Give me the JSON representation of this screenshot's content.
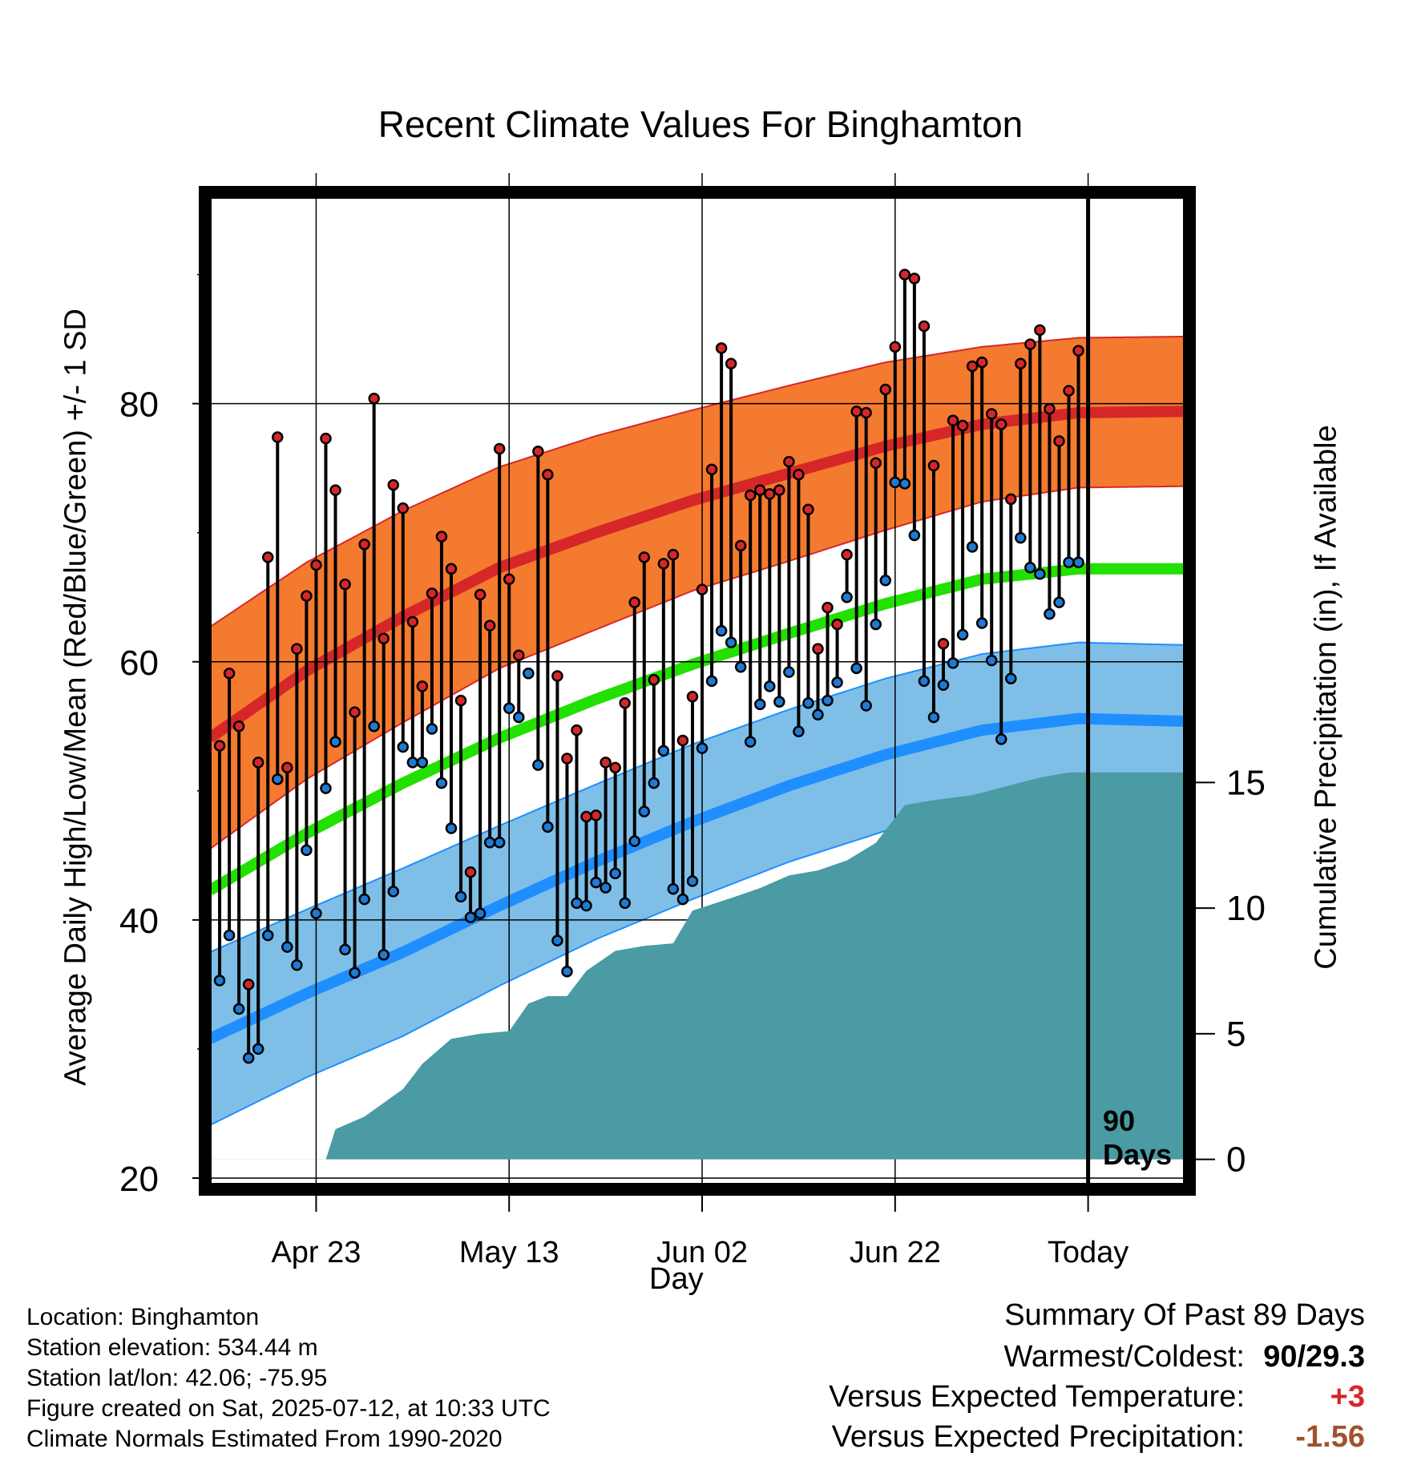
{
  "page": {
    "title": "Recent Climate Values For Binghamton",
    "ylabel_left": "Average Daily High/Low/Mean (Red/Blue/Green) +/- 1 SD",
    "ylabel_right": "Cumulative Precipitation (in), If Available",
    "xlabel": "Day",
    "today_marker_line1": "90",
    "today_marker_line2": "Days"
  },
  "info": {
    "location": "Location: Binghamton",
    "elevation": "Station elevation: 534.44 m",
    "latlon": "Station lat/lon: 42.06; -75.95",
    "created": "Figure created on Sat, 2025-07-12, at 10:33 UTC",
    "normals": "Climate Normals Estimated From 1990-2020"
  },
  "summary": {
    "heading": "Summary Of Past 89 Days",
    "warm_cold_label": "Warmest/Coldest:",
    "warm_cold_value": "90/29.3",
    "temp_label": "Versus Expected Temperature:",
    "temp_value": "+3",
    "precip_label": "Versus Expected Precipitation:",
    "precip_value": "-1.56",
    "temp_color": "#d62728",
    "precip_color": "#a0522d"
  },
  "chart_data": {
    "type": "line",
    "title": "Recent Climate Values For Binghamton",
    "xlabel": "Day",
    "ylabel": "Average Daily High/Low/Mean (Red/Blue/Green) +/- 1 SD",
    "y2label": "Cumulative Precipitation (in), If Available",
    "xlim": [
      0,
      101
    ],
    "ylim": [
      19.5,
      96
    ],
    "y2lim": [
      -1,
      38.3
    ],
    "xticks": [
      {
        "x": 11,
        "label": "Apr 23"
      },
      {
        "x": 31,
        "label": "May 13"
      },
      {
        "x": 51,
        "label": "Jun 02"
      },
      {
        "x": 71,
        "label": "Jun 22"
      },
      {
        "x": 91,
        "label": "Today"
      }
    ],
    "yticks": [
      20,
      40,
      60,
      80
    ],
    "y2ticks": [
      0,
      5,
      10,
      15
    ],
    "today_x": 91,
    "grid": true,
    "colors": {
      "high_band": "#f47a2f",
      "high_line": "#d62728",
      "low_band": "#7fbfe7",
      "low_line": "#1f8fff",
      "mean_line": "#22e000",
      "precip": "#4a9ba3",
      "high_point": "#d62728",
      "low_point": "#1f7ad4"
    },
    "normals_x": [
      0,
      10,
      20,
      30,
      40,
      50,
      60,
      70,
      80,
      90,
      101
    ],
    "normal_high": [
      54.1,
      59.3,
      63.5,
      67.3,
      70.0,
      72.5,
      74.6,
      76.7,
      78.4,
      79.3,
      79.4
    ],
    "normal_high_sd": [
      8.6,
      8.4,
      8.2,
      7.8,
      7.5,
      7.0,
      6.8,
      6.5,
      6.0,
      5.8,
      5.8
    ],
    "normal_low": [
      30.8,
      34.3,
      37.5,
      41.1,
      44.5,
      47.6,
      50.4,
      52.8,
      54.7,
      55.6,
      55.4
    ],
    "normal_low_sd": [
      6.7,
      6.5,
      6.5,
      6.2,
      6.0,
      6.0,
      5.9,
      5.9,
      5.9,
      5.9,
      5.9
    ],
    "normal_mean": [
      42.3,
      46.7,
      50.6,
      54.1,
      57.1,
      59.8,
      62.2,
      64.5,
      66.4,
      67.2,
      67.2
    ],
    "daily_x": [
      1,
      2,
      3,
      4,
      5,
      6,
      7,
      8,
      9,
      10,
      11,
      12,
      13,
      14,
      15,
      16,
      17,
      18,
      19,
      20,
      21,
      22,
      23,
      24,
      25,
      26,
      27,
      28,
      29,
      30,
      31,
      32,
      33,
      34,
      35,
      36,
      37,
      38,
      39,
      40,
      41,
      42,
      43,
      44,
      45,
      46,
      47,
      48,
      49,
      50,
      51,
      52,
      53,
      54,
      55,
      56,
      57,
      58,
      59,
      60,
      61,
      62,
      63,
      64,
      65,
      66,
      67,
      68,
      69,
      70,
      71,
      72,
      73,
      74,
      75,
      76,
      77,
      78,
      79,
      80,
      81,
      82,
      83,
      84,
      85,
      86,
      87,
      88,
      89,
      90
    ],
    "daily_high": [
      53.5,
      59.1,
      55.0,
      35.0,
      52.2,
      68.1,
      77.4,
      51.8,
      61.0,
      65.1,
      67.5,
      77.3,
      73.3,
      66.0,
      56.1,
      69.1,
      80.4,
      61.8,
      73.7,
      71.9,
      63.1,
      58.1,
      65.3,
      69.7,
      67.2,
      57.0,
      43.7,
      65.2,
      62.8,
      76.5,
      66.4,
      60.5,
      59.1,
      76.3,
      74.5,
      58.9,
      52.5,
      54.7,
      48.0,
      48.1,
      52.2,
      51.8,
      56.8,
      64.6,
      68.1,
      58.6,
      67.6,
      68.3,
      53.9,
      57.3,
      65.6,
      74.9,
      84.3,
      83.1,
      69.0,
      72.9,
      73.3,
      73.0,
      73.3,
      75.5,
      74.5,
      71.8,
      61.0,
      64.2,
      62.9,
      68.3,
      79.4,
      79.3,
      75.4,
      81.1,
      84.4,
      90.0,
      89.7,
      86.0,
      75.2,
      61.4,
      78.7,
      78.3,
      82.9,
      83.2,
      79.2,
      78.4,
      72.6,
      83.1,
      84.6,
      85.7,
      79.6,
      77.1,
      81.0,
      84.1
    ],
    "daily_low": [
      35.3,
      38.8,
      33.1,
      29.3,
      30.0,
      38.8,
      50.9,
      37.9,
      36.5,
      45.4,
      40.5,
      50.2,
      53.8,
      37.7,
      35.9,
      41.6,
      55.0,
      37.3,
      42.2,
      53.4,
      52.2,
      52.2,
      54.8,
      50.6,
      47.1,
      41.8,
      40.2,
      40.5,
      46.0,
      46.0,
      56.4,
      55.7,
      59.1,
      52.0,
      47.2,
      38.4,
      36.0,
      41.3,
      41.1,
      42.9,
      42.5,
      43.6,
      41.3,
      46.1,
      48.4,
      50.6,
      53.1,
      42.4,
      41.6,
      43.0,
      53.3,
      58.5,
      62.4,
      61.5,
      59.6,
      53.8,
      56.7,
      58.1,
      56.9,
      59.2,
      54.6,
      56.8,
      55.9,
      57.0,
      58.4,
      65.0,
      59.5,
      56.6,
      62.9,
      66.3,
      73.9,
      73.8,
      69.8,
      58.5,
      55.7,
      58.2,
      59.9,
      62.1,
      68.9,
      63.0,
      60.1,
      54.0,
      58.7,
      69.6,
      67.3,
      66.8,
      63.7,
      64.6,
      67.7,
      67.7
    ]
  }
}
